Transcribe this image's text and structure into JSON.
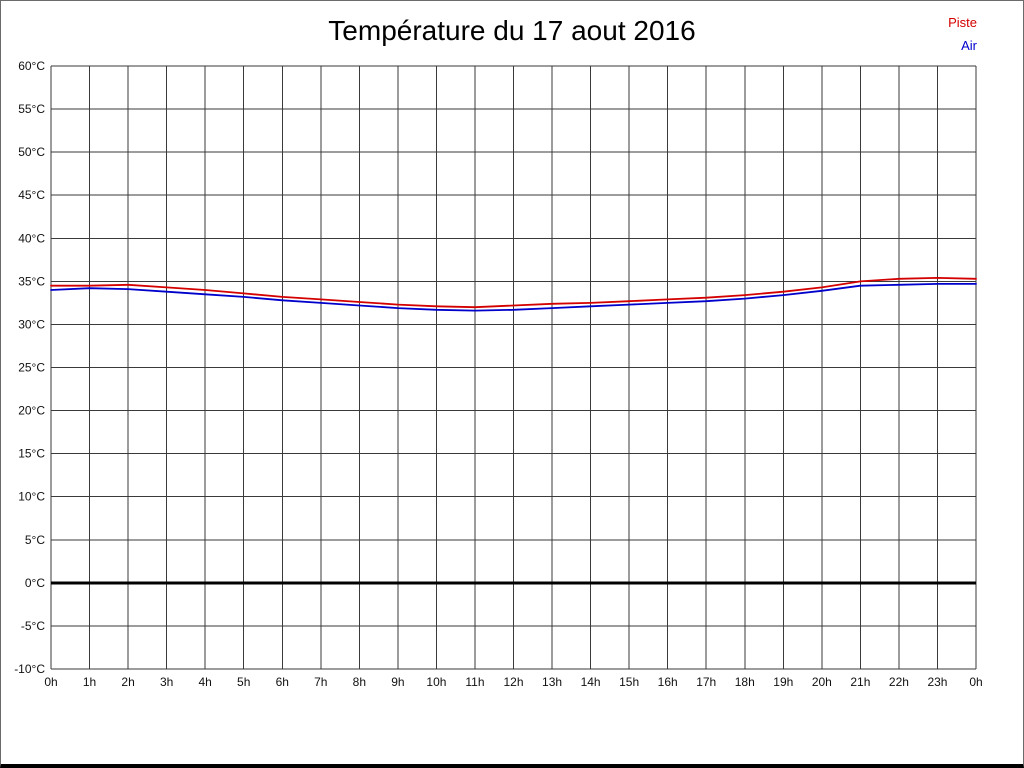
{
  "chart_data": {
    "type": "line",
    "title": "Température du 17 aout 2016",
    "xlabel": "",
    "ylabel": "",
    "xlim": [
      0,
      24
    ],
    "ylim": [
      -10,
      60
    ],
    "y_step": 5,
    "grid": true,
    "legend_position": "top-right",
    "zero_line_value": 0,
    "x_tick_labels": [
      "0h",
      "1h",
      "2h",
      "3h",
      "4h",
      "5h",
      "6h",
      "7h",
      "8h",
      "9h",
      "10h",
      "11h",
      "12h",
      "13h",
      "14h",
      "15h",
      "16h",
      "17h",
      "18h",
      "19h",
      "20h",
      "21h",
      "22h",
      "23h",
      "0h"
    ],
    "y_tick_labels": [
      "60°C",
      "55°C",
      "50°C",
      "45°C",
      "40°C",
      "35°C",
      "30°C",
      "25°C",
      "20°C",
      "15°C",
      "10°C",
      "5°C",
      "0°C",
      "-5°C",
      "-10°C"
    ],
    "x": [
      0,
      1,
      2,
      3,
      4,
      5,
      6,
      7,
      8,
      9,
      10,
      11,
      12,
      13,
      14,
      15,
      16,
      17,
      18,
      19,
      20,
      21,
      22,
      23,
      24
    ],
    "series": [
      {
        "name": "Piste",
        "color": "#d40000",
        "values": [
          34.5,
          34.5,
          34.6,
          34.3,
          34.0,
          33.6,
          33.2,
          32.9,
          32.6,
          32.3,
          32.1,
          32.0,
          32.2,
          32.4,
          32.5,
          32.7,
          32.9,
          33.1,
          33.4,
          33.8,
          34.3,
          35.0,
          35.3,
          35.4,
          35.3
        ]
      },
      {
        "name": "Air",
        "color": "#0000cc",
        "values": [
          34.0,
          34.2,
          34.1,
          33.8,
          33.5,
          33.2,
          32.8,
          32.5,
          32.2,
          31.9,
          31.7,
          31.6,
          31.7,
          31.9,
          32.1,
          32.3,
          32.5,
          32.7,
          33.0,
          33.4,
          33.9,
          34.5,
          34.6,
          34.7,
          34.7
        ]
      }
    ]
  }
}
